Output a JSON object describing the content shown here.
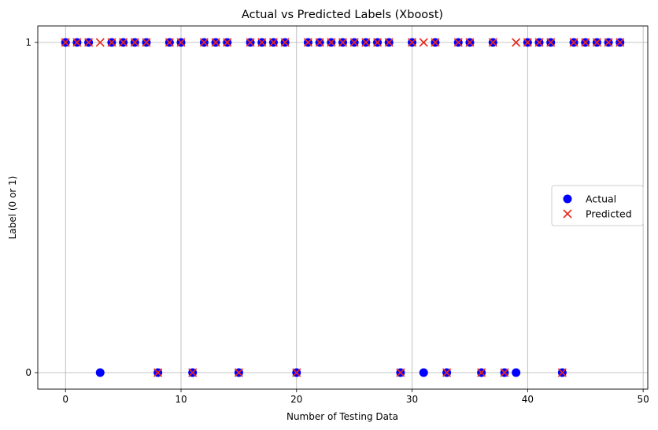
{
  "chart_data": {
    "type": "scatter",
    "title": "Actual vs Predicted Labels (Xboost)",
    "xlabel": "Number of Testing Data",
    "ylabel": "Label (0 or 1)",
    "xlim": [
      -2.4,
      50.4
    ],
    "ylim": [
      -0.05,
      1.05
    ],
    "x_ticks": [
      0,
      10,
      20,
      30,
      40,
      50
    ],
    "y_ticks": [
      0,
      1
    ],
    "grid": true,
    "legend": {
      "placement": "center-right",
      "entries": [
        "Actual",
        "Predicted"
      ]
    },
    "series": [
      {
        "name": "Actual",
        "marker": "circle",
        "color": "#0000ff",
        "x": [
          0,
          1,
          2,
          3,
          4,
          5,
          6,
          7,
          8,
          9,
          10,
          11,
          12,
          13,
          14,
          15,
          16,
          17,
          18,
          19,
          20,
          21,
          22,
          23,
          24,
          25,
          26,
          27,
          28,
          29,
          30,
          31,
          32,
          33,
          34,
          35,
          36,
          37,
          38,
          39,
          40,
          41,
          42,
          43,
          44,
          45,
          46,
          47,
          48
        ],
        "y": [
          1,
          1,
          1,
          0,
          1,
          1,
          1,
          1,
          0,
          1,
          1,
          0,
          1,
          1,
          1,
          0,
          1,
          1,
          1,
          1,
          0,
          1,
          1,
          1,
          1,
          1,
          1,
          1,
          1,
          0,
          1,
          0,
          1,
          0,
          1,
          1,
          0,
          1,
          0,
          0,
          1,
          1,
          1,
          0,
          1,
          1,
          1,
          1,
          1
        ]
      },
      {
        "name": "Predicted",
        "marker": "x",
        "color": "#e8291c",
        "x": [
          0,
          1,
          2,
          3,
          4,
          5,
          6,
          7,
          8,
          9,
          10,
          11,
          12,
          13,
          14,
          15,
          16,
          17,
          18,
          19,
          20,
          21,
          22,
          23,
          24,
          25,
          26,
          27,
          28,
          29,
          30,
          31,
          32,
          33,
          34,
          35,
          36,
          37,
          38,
          39,
          40,
          41,
          42,
          43,
          44,
          45,
          46,
          47,
          48
        ],
        "y": [
          1,
          1,
          1,
          1,
          1,
          1,
          1,
          1,
          0,
          1,
          1,
          0,
          1,
          1,
          1,
          0,
          1,
          1,
          1,
          1,
          0,
          1,
          1,
          1,
          1,
          1,
          1,
          1,
          1,
          0,
          1,
          1,
          1,
          0,
          1,
          1,
          0,
          1,
          0,
          1,
          1,
          1,
          1,
          0,
          1,
          1,
          1,
          1,
          1
        ]
      }
    ]
  }
}
